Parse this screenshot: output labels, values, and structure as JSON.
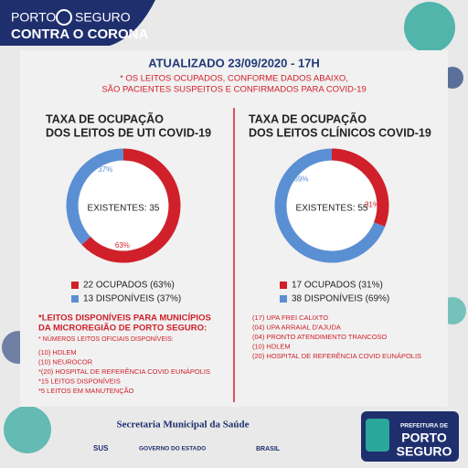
{
  "header": {
    "brand_left": "PORTO",
    "brand_right": "SEGURO",
    "campaign": "CONTRA O CORONA"
  },
  "updated": "ATUALIZADO 23/09/2020 - 17H",
  "notice": [
    "* OS LEITOS OCUPADOS, CONFORME DADOS ABAIXO,",
    "SÃO PACIENTES SUSPEITOS E CONFIRMADOS PARA COVID-19"
  ],
  "chart_data": [
    {
      "type": "pie",
      "title": [
        "TAXA DE OCUPAÇÃO",
        "DOS LEITOS DE UTI COVID-19"
      ],
      "center_label": "EXISTENTES: 35",
      "categories": [
        "22 OCUPADOS (63%)",
        "13 DISPONÍVEIS (37%)"
      ],
      "values": [
        63,
        37
      ],
      "value_labels": [
        "63%",
        "37%"
      ],
      "colors": [
        "#d0202a",
        "#5b8fd4"
      ]
    },
    {
      "type": "pie",
      "title": [
        "TAXA DE OCUPAÇÃO",
        "DOS LEITOS CLÍNICOS COVID-19"
      ],
      "center_label": "EXISTENTES: 55",
      "categories": [
        "17 OCUPADOS (31%)",
        "38 DISPONÍVEIS (69%)"
      ],
      "values": [
        31,
        69
      ],
      "value_labels": [
        "31%",
        "69%"
      ],
      "colors": [
        "#d0202a",
        "#5b8fd4"
      ]
    }
  ],
  "left_notes": {
    "heading": [
      "*LEITOS DISPONÍVEIS PARA MUNICÍPIOS",
      "DA MICROREGIÃO DE PORTO SEGURO:"
    ],
    "subheading": "* NÚMEROS LEITOS OFICIAIS DISPONÍVEIS:",
    "items": [
      "(10) HDLEM",
      "(10) NEUROCOR",
      "*(20) HOSPITAL DE REFERÊNCIA COVID EUNÁPOLIS",
      "*15 LEITOS DISPONÍVEIS",
      "*5 LEITOS EM MANUTENÇÃO"
    ]
  },
  "right_notes": [
    "(17) UPA FREI CALIXTO",
    "(04) UPA ARRAIAL D'AJUDA",
    "(04) PRONTO ATENDIMENTO TRANCOSO",
    "(10) HDLEM",
    "(20) HOSPITAL DE REFERÊNCIA COVID EUNÁPOLIS"
  ],
  "footer": {
    "secretaria": "Secretaria Municipal da Saúde",
    "sus": "SUS",
    "governo": "GOVERNO DO ESTADO",
    "brasil": "BRASIL",
    "prefeitura": "PREFEITURA DE",
    "city_line1": "PORTO",
    "city_line2": "SEGURO"
  }
}
